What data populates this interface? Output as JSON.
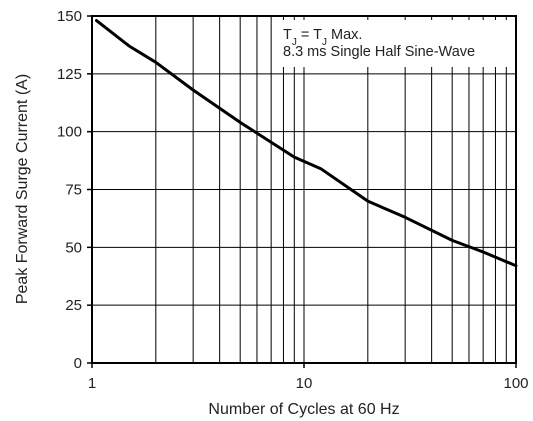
{
  "chart_data": {
    "type": "line",
    "title": "",
    "xlabel": "Number of Cycles at 60 Hz",
    "ylabel": "Peak Forward Surge Current (A)",
    "x_scale": "log",
    "xlim": [
      1,
      100
    ],
    "ylim": [
      0,
      150
    ],
    "grid": true,
    "x_ticks": [
      "1",
      "10",
      "100"
    ],
    "y_ticks": [
      "0",
      "25",
      "50",
      "75",
      "100",
      "125",
      "150"
    ],
    "annotation": {
      "line1_main": "T",
      "line1_sub1": "J",
      "line1_mid": " = T",
      "line1_sub2": "J",
      "line1_end": " Max.",
      "line2": "8.3 ms Single Half Sine-Wave"
    },
    "series": [
      {
        "x": [
          1.05,
          1.5,
          2,
          3,
          5,
          9,
          12,
          20,
          30,
          50,
          70,
          100
        ],
        "y": [
          148,
          137,
          130,
          118,
          104,
          89,
          84,
          70,
          63,
          53,
          48,
          42
        ]
      }
    ]
  }
}
